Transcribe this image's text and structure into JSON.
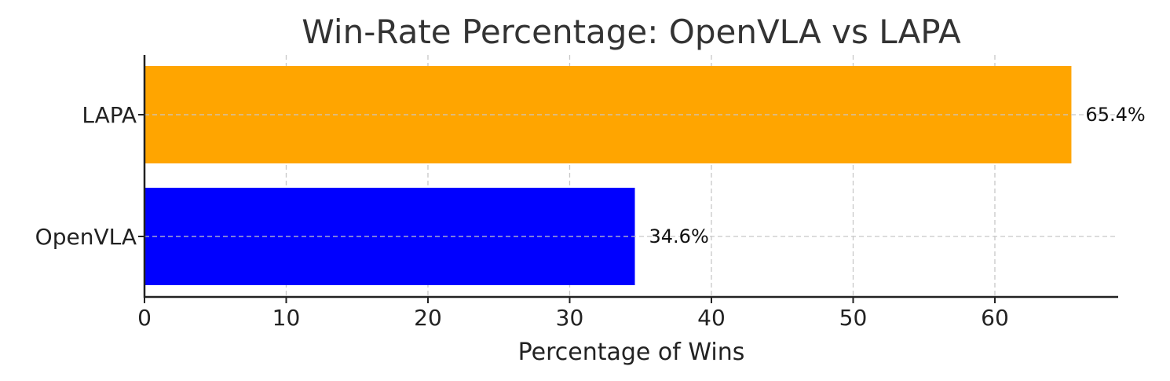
{
  "chart_data": {
    "type": "bar",
    "orientation": "horizontal",
    "title": "Win-Rate Percentage: OpenVLA vs LAPA",
    "xlabel": "Percentage of Wins",
    "ylabel": "",
    "categories": [
      "OpenVLA",
      "LAPA"
    ],
    "values": [
      34.6,
      65.4
    ],
    "data_labels": [
      "34.6%",
      "65.4%"
    ],
    "colors": [
      "#0000ff",
      "#ffa500"
    ],
    "xlim": [
      0,
      68.7
    ],
    "xticks": [
      0,
      10,
      20,
      30,
      40,
      50,
      60
    ],
    "grid": true
  }
}
